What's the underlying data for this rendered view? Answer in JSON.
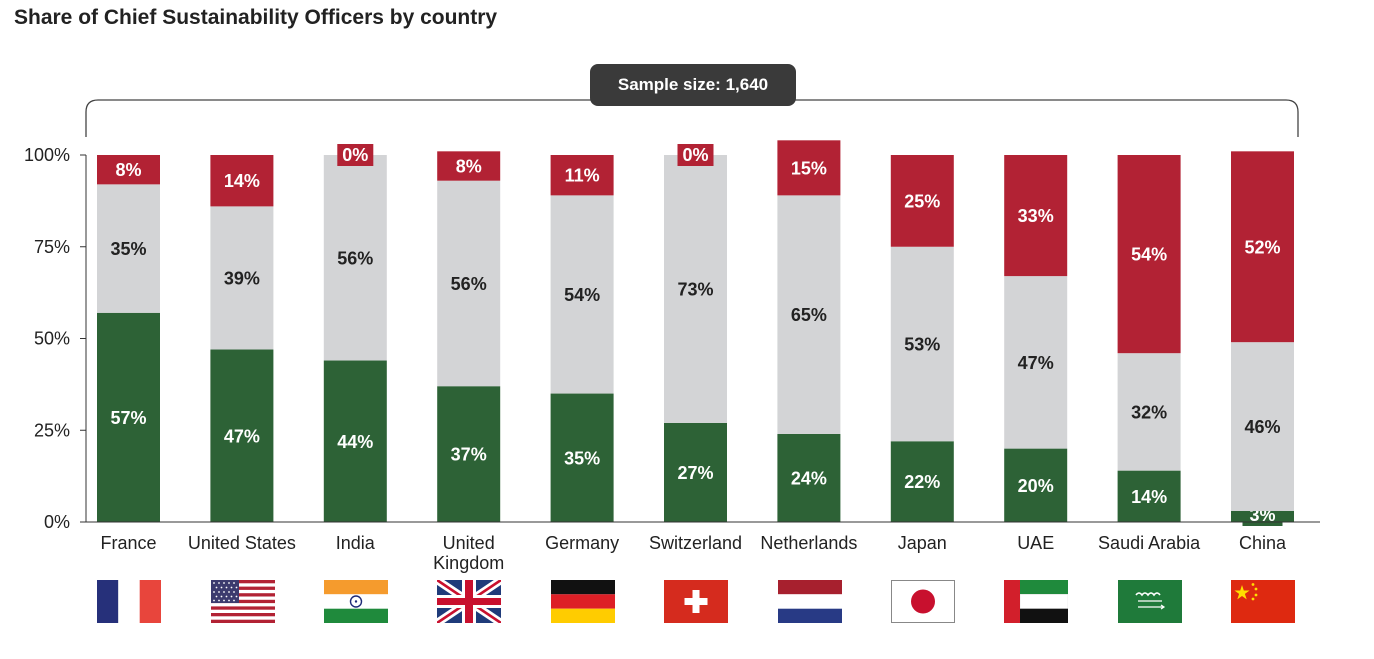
{
  "chart_data": {
    "type": "bar",
    "stacked": true,
    "title": "Share of Chief Sustainability Officers by country",
    "annotation": "Sample size: 1,640",
    "categories": [
      "France",
      "United States",
      "India",
      "United Kingdom",
      "Germany",
      "Switzerland",
      "Netherlands",
      "Japan",
      "UAE",
      "Saudi Arabia",
      "China"
    ],
    "category_lines": [
      [
        "France"
      ],
      [
        "United States"
      ],
      [
        "India"
      ],
      [
        "United",
        "Kingdom"
      ],
      [
        "Germany"
      ],
      [
        "Switzerland"
      ],
      [
        "Netherlands"
      ],
      [
        "Japan"
      ],
      [
        "UAE"
      ],
      [
        "Saudi Arabia"
      ],
      [
        "China"
      ]
    ],
    "series": [
      {
        "color": "#2d6236",
        "values": [
          57,
          47,
          44,
          37,
          35,
          27,
          24,
          22,
          20,
          14,
          3
        ]
      },
      {
        "color": "#d3d4d6",
        "values": [
          35,
          39,
          56,
          56,
          54,
          73,
          65,
          53,
          47,
          32,
          46
        ]
      },
      {
        "color": "#b22234",
        "values": [
          8,
          14,
          0,
          8,
          11,
          0,
          15,
          25,
          33,
          54,
          52
        ]
      }
    ],
    "ylim": [
      0,
      100
    ],
    "yticks": [
      0,
      25,
      50,
      75,
      100
    ],
    "ytick_labels": [
      "0%",
      "25%",
      "50%",
      "75%",
      "100%"
    ],
    "grid": false,
    "legend": "none"
  },
  "flags": [
    "france-flag-icon",
    "united-states-flag-icon",
    "india-flag-icon",
    "united-kingdom-flag-icon",
    "germany-flag-icon",
    "switzerland-flag-icon",
    "netherlands-flag-icon",
    "japan-flag-icon",
    "uae-flag-icon",
    "saudi-arabia-flag-icon",
    "china-flag-icon"
  ]
}
